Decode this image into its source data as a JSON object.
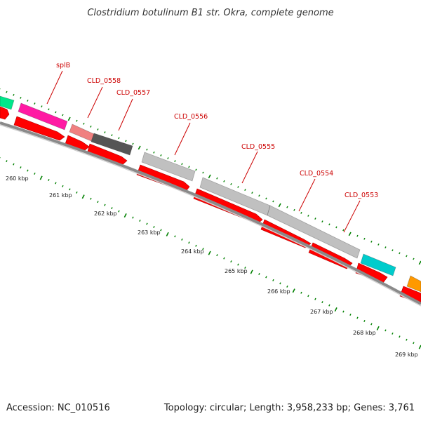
{
  "title": "Clostridium botulinum B1 str. Okra, complete genome",
  "footer": {
    "accession": "Accession: NC_010516",
    "summary": "Topology: circular; Length: 3,958,233 bp; Genes: 3,761"
  },
  "colors": {
    "cds_red": "#ff0000",
    "backbone": "#808080",
    "tick_green": "#008000",
    "label_red": "#cc0000",
    "splB": "#ff1aa3",
    "CLD_0558": "#f08080",
    "CLD_0557": "#555555",
    "gray_gene": "#c0c0c0",
    "CLD_0553": "#00cccc",
    "left_gene": "#00e68a",
    "right_gene": "#ff9900"
  },
  "gene_labels": [
    "splB",
    "CLD_0558",
    "CLD_0557",
    "CLD_0556",
    "CLD_0555",
    "CLD_0554",
    "CLD_0553"
  ],
  "kbp_labels": [
    "260 kbp",
    "261 kbp",
    "262 kbp",
    "263 kbp",
    "264 kbp",
    "265 kbp",
    "266 kbp",
    "267 kbp",
    "268 kbp",
    "269 kbp"
  ]
}
